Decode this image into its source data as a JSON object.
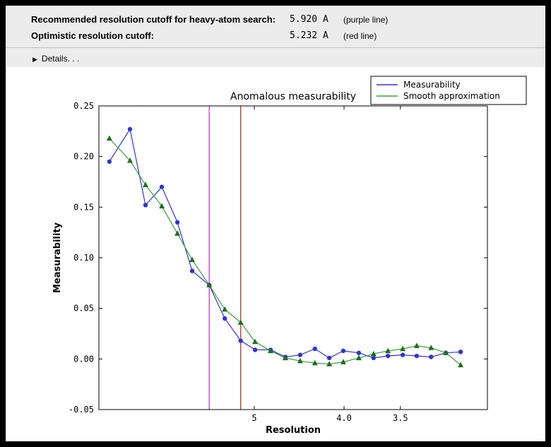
{
  "header": {
    "rows": [
      {
        "label": "Recommended resolution cutoff for heavy-atom search:",
        "value": "5.920 A",
        "note": "(purple line)"
      },
      {
        "label": "Optimistic resolution cutoff:",
        "value": "5.232 A",
        "note": "(red line)"
      }
    ],
    "details_label": "Details. . ."
  },
  "chart_data": {
    "type": "line",
    "title": "Anomalous measurability",
    "xlabel": "Resolution",
    "ylabel": "Measurability",
    "ylim": [
      -0.05,
      0.25
    ],
    "yticks": [
      0.25,
      0.2,
      0.15,
      0.1,
      0.05,
      0.0,
      -0.05
    ],
    "ytick_labels": [
      "0.25",
      "0.20",
      "0.15",
      "0.10",
      "0.05",
      "0.00",
      "-0.05"
    ],
    "x_axis_note": "Resolution in Angstrom, nonlinear scale decreasing left to right",
    "xticks": [
      {
        "label": "5",
        "pos": 0.4
      },
      {
        "label": "4.0",
        "pos": 0.631
      },
      {
        "label": "3.5",
        "pos": 0.776
      }
    ],
    "x_positions": [
      0.027,
      0.08,
      0.12,
      0.162,
      0.202,
      0.24,
      0.284,
      0.324,
      0.365,
      0.402,
      0.442,
      0.48,
      0.518,
      0.556,
      0.593,
      0.629,
      0.669,
      0.707,
      0.744,
      0.782,
      0.818,
      0.855,
      0.893,
      0.931
    ],
    "series": [
      {
        "name": "Measurability",
        "slug": "measurability-series",
        "color": "#3333cc",
        "marker": "circle",
        "marker_color": "#3333cc",
        "values": [
          0.195,
          0.227,
          0.152,
          0.17,
          0.135,
          0.087,
          0.073,
          0.04,
          0.018,
          0.009,
          0.009,
          0.002,
          0.004,
          0.01,
          0.001,
          0.008,
          0.006,
          0.001,
          0.003,
          0.004,
          0.003,
          0.002,
          0.006,
          0.007
        ]
      },
      {
        "name": "Smooth approximation",
        "slug": "smooth-approximation-series",
        "color": "#3f9b3f",
        "marker": "triangle",
        "marker_color": "#1f6f1f",
        "values": [
          0.218,
          0.196,
          0.172,
          0.151,
          0.124,
          0.098,
          0.073,
          0.049,
          0.036,
          0.017,
          0.008,
          0.001,
          -0.002,
          -0.004,
          -0.005,
          -0.003,
          0.001,
          0.005,
          0.008,
          0.01,
          0.013,
          0.011,
          0.006,
          -0.006
        ]
      }
    ],
    "vlines": [
      {
        "pos": 0.284,
        "color": "#c837c8",
        "name": "purple-cutoff-line",
        "cutoff": "5.920 A"
      },
      {
        "pos": 0.365,
        "color": "#9e3a28",
        "name": "red-cutoff-line",
        "cutoff": "5.232 A"
      }
    ],
    "legend": {
      "position": "top-right",
      "entries": [
        "Measurability",
        "Smooth approximation"
      ]
    }
  }
}
